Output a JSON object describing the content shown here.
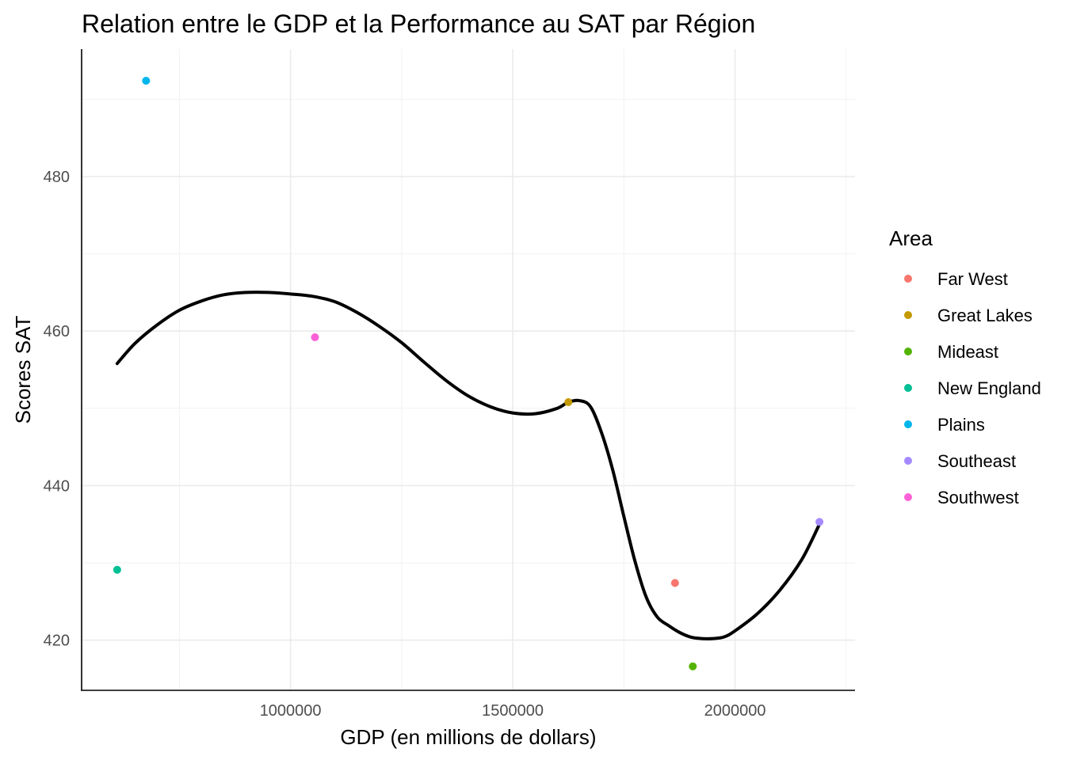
{
  "chart_data": {
    "type": "scatter",
    "title": "Relation entre le GDP et la Performance au SAT par Région",
    "xlabel": "GDP (en millions de dollars)",
    "ylabel": "Scores SAT",
    "xlim": [
      530000,
      2270000
    ],
    "ylim": [
      413.5,
      496.5
    ],
    "x_ticks": [
      1000000,
      1500000,
      2000000
    ],
    "x_minor_ticks": [
      750000,
      1250000,
      1750000,
      2250000
    ],
    "y_ticks": [
      420,
      440,
      460,
      480
    ],
    "y_minor_ticks": [
      430,
      450,
      470,
      490
    ],
    "grid": true,
    "legend": {
      "title": "Area",
      "position": "right",
      "entries": [
        "Far West",
        "Great Lakes",
        "Mideast",
        "New England",
        "Plains",
        "Southeast",
        "Southwest"
      ]
    },
    "colors": {
      "Far West": "#F8766D",
      "Great Lakes": "#C49A00",
      "Mideast": "#53B400",
      "New England": "#00C094",
      "Plains": "#00B6EB",
      "Southeast": "#A58AFF",
      "Southwest": "#FB61D7",
      "smooth_line": "#000000"
    },
    "points": [
      {
        "area": "Far West",
        "x": 1865000,
        "y": 427.4
      },
      {
        "area": "Great Lakes",
        "x": 1625000,
        "y": 450.8
      },
      {
        "area": "Mideast",
        "x": 1905000,
        "y": 416.6
      },
      {
        "area": "New England",
        "x": 610000,
        "y": 429.1
      },
      {
        "area": "Plains",
        "x": 675000,
        "y": 492.4
      },
      {
        "area": "Southeast",
        "x": 2190000,
        "y": 435.3
      },
      {
        "area": "Southwest",
        "x": 1055000,
        "y": 459.2
      }
    ],
    "smooth_line": {
      "x": [
        610000,
        650000,
        700000,
        750000,
        800000,
        850000,
        900000,
        950000,
        1000000,
        1050000,
        1100000,
        1150000,
        1200000,
        1250000,
        1300000,
        1350000,
        1400000,
        1450000,
        1500000,
        1550000,
        1600000,
        1625000,
        1650000,
        1675000,
        1700000,
        1725000,
        1750000,
        1775000,
        1800000,
        1825000,
        1850000,
        1875000,
        1900000,
        1925000,
        1950000,
        1975000,
        2000000,
        2050000,
        2100000,
        2150000,
        2190000
      ],
      "y": [
        455.8,
        458.4,
        460.8,
        462.7,
        463.9,
        464.7,
        465.0,
        465.0,
        464.8,
        464.5,
        463.8,
        462.4,
        460.6,
        458.5,
        456.0,
        453.6,
        451.6,
        450.2,
        449.4,
        449.3,
        450.0,
        450.8,
        451.0,
        450.2,
        446.8,
        442.0,
        436.0,
        430.2,
        425.6,
        423.0,
        421.9,
        421.0,
        420.4,
        420.2,
        420.2,
        420.4,
        421.2,
        423.4,
        426.4,
        430.4,
        435.0
      ]
    }
  }
}
